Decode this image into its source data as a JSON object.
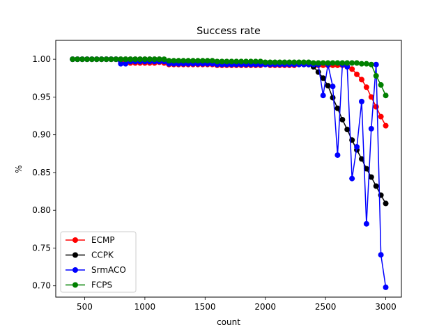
{
  "chart_data": {
    "type": "line",
    "title": "Success rate",
    "xlabel": "count",
    "ylabel": "%",
    "xlim": [
      260,
      3130
    ],
    "ylim": [
      0.685,
      1.025
    ],
    "xticks": [
      500,
      1000,
      1500,
      2000,
      2500,
      3000
    ],
    "xtick_labels": [
      "500",
      "1000",
      "1500",
      "2000",
      "2500",
      "3000"
    ],
    "yticks": [
      0.7,
      0.75,
      0.8,
      0.85,
      0.9,
      0.95,
      1.0
    ],
    "ytick_labels": [
      "0.70",
      "0.75",
      "0.80",
      "0.85",
      "0.90",
      "0.95",
      "1.00"
    ],
    "grid": false,
    "legend_position": "lower-left",
    "x": [
      400,
      440,
      480,
      520,
      560,
      600,
      640,
      680,
      720,
      760,
      800,
      840,
      880,
      920,
      960,
      1000,
      1040,
      1080,
      1120,
      1160,
      1200,
      1240,
      1280,
      1320,
      1360,
      1400,
      1440,
      1480,
      1520,
      1560,
      1600,
      1640,
      1680,
      1720,
      1760,
      1800,
      1840,
      1880,
      1920,
      1960,
      2000,
      2040,
      2080,
      2120,
      2160,
      2200,
      2240,
      2280,
      2320,
      2360,
      2400,
      2440,
      2480,
      2520,
      2560,
      2600,
      2640,
      2680,
      2720,
      2760,
      2800,
      2840,
      2880,
      2920,
      2960,
      3000
    ],
    "series": [
      {
        "name": "ECMP",
        "color": "#ff0000",
        "values": [
          1.0,
          1.0,
          1.0,
          1.0,
          1.0,
          1.0,
          1.0,
          1.0,
          1.0,
          1.0,
          0.997,
          0.996,
          0.995,
          0.995,
          0.995,
          0.995,
          0.995,
          0.995,
          0.996,
          0.995,
          0.993,
          0.993,
          0.993,
          0.993,
          0.993,
          0.993,
          0.993,
          0.993,
          0.993,
          0.993,
          0.992,
          0.992,
          0.992,
          0.992,
          0.992,
          0.992,
          0.992,
          0.992,
          0.992,
          0.992,
          0.993,
          0.992,
          0.992,
          0.992,
          0.992,
          0.992,
          0.992,
          0.993,
          0.993,
          0.993,
          0.993,
          0.992,
          0.992,
          0.992,
          0.992,
          0.992,
          0.992,
          0.991,
          0.987,
          0.98,
          0.973,
          0.963,
          0.95,
          0.937,
          0.924,
          0.912
        ]
      },
      {
        "name": "CCPK",
        "color": "#000000",
        "values": [
          1.0,
          1.0,
          1.0,
          1.0,
          1.0,
          1.0,
          1.0,
          1.0,
          1.0,
          1.0,
          1.0,
          1.0,
          1.0,
          1.0,
          1.0,
          1.0,
          1.0,
          1.0,
          1.0,
          0.999,
          0.996,
          0.996,
          0.996,
          0.996,
          0.996,
          0.996,
          0.996,
          0.996,
          0.996,
          0.996,
          0.994,
          0.994,
          0.994,
          0.994,
          0.994,
          0.994,
          0.994,
          0.994,
          0.994,
          0.994,
          0.994,
          0.994,
          0.994,
          0.994,
          0.994,
          0.994,
          0.994,
          0.994,
          0.994,
          0.993,
          0.99,
          0.983,
          0.975,
          0.965,
          0.949,
          0.935,
          0.92,
          0.907,
          0.893,
          0.88,
          0.868,
          0.855,
          0.844,
          0.832,
          0.82,
          0.809
        ]
      },
      {
        "name": "SrmACO",
        "color": "#0000ff",
        "values": [
          1.0,
          1.0,
          1.0,
          1.0,
          1.0,
          1.0,
          1.0,
          1.0,
          1.0,
          1.0,
          0.994,
          0.994,
          0.997,
          0.997,
          0.997,
          0.997,
          0.997,
          0.997,
          0.997,
          0.997,
          0.994,
          0.994,
          0.994,
          0.994,
          0.994,
          0.994,
          0.994,
          0.994,
          0.994,
          0.994,
          0.993,
          0.993,
          0.993,
          0.993,
          0.993,
          0.993,
          0.993,
          0.993,
          0.993,
          0.993,
          0.993,
          0.993,
          0.993,
          0.993,
          0.993,
          0.993,
          0.993,
          0.993,
          0.993,
          0.993,
          0.993,
          0.993,
          0.952,
          0.993,
          0.964,
          0.873,
          0.993,
          0.99,
          0.842,
          0.884,
          0.944,
          0.782,
          0.908,
          0.993,
          0.741,
          0.698
        ]
      },
      {
        "name": "FCPS",
        "color": "#008000",
        "values": [
          1.0,
          1.0,
          1.0,
          1.0,
          1.0,
          1.0,
          1.0,
          1.0,
          1.0,
          1.0,
          1.0,
          1.0,
          1.0,
          1.0,
          1.0,
          1.0,
          1.0,
          1.0,
          1.0,
          1.0,
          0.998,
          0.998,
          0.998,
          0.998,
          0.998,
          0.998,
          0.998,
          0.998,
          0.998,
          0.998,
          0.997,
          0.997,
          0.997,
          0.997,
          0.997,
          0.997,
          0.997,
          0.997,
          0.997,
          0.997,
          0.996,
          0.996,
          0.996,
          0.996,
          0.996,
          0.996,
          0.996,
          0.996,
          0.996,
          0.996,
          0.995,
          0.995,
          0.995,
          0.995,
          0.995,
          0.995,
          0.995,
          0.995,
          0.995,
          0.995,
          0.994,
          0.994,
          0.993,
          0.978,
          0.966,
          0.952
        ]
      }
    ]
  }
}
